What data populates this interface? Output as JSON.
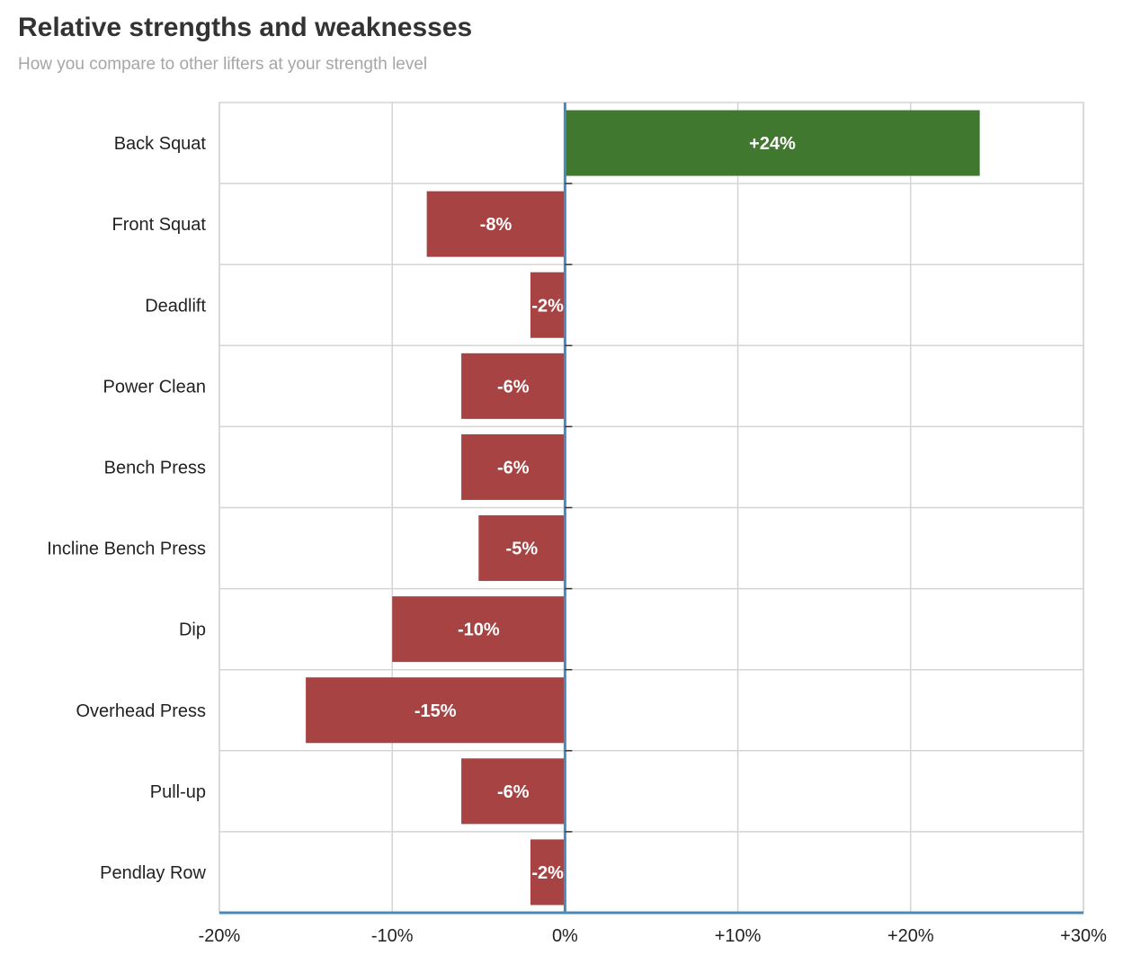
{
  "chart_data": {
    "type": "bar",
    "orientation": "horizontal",
    "title": "Relative strengths and weaknesses",
    "subtitle": "How you compare to other lifters at your strength level",
    "categories": [
      "Back Squat",
      "Front Squat",
      "Deadlift",
      "Power Clean",
      "Bench Press",
      "Incline Bench Press",
      "Dip",
      "Overhead Press",
      "Pull-up",
      "Pendlay Row"
    ],
    "values": [
      24,
      -8,
      -2,
      -6,
      -6,
      -5,
      -10,
      -15,
      -6,
      -2
    ],
    "value_labels": [
      "+24%",
      "-8%",
      "-2%",
      "-6%",
      "-6%",
      "-5%",
      "-10%",
      "-15%",
      "-6%",
      "-2%"
    ],
    "xlim": [
      -20,
      30
    ],
    "xticks": [
      -20,
      -10,
      0,
      10,
      20,
      30
    ],
    "xtick_labels": [
      "-20%",
      "-10%",
      "0%",
      "+10%",
      "+20%",
      "+30%"
    ],
    "xlabel": "",
    "ylabel": "",
    "grid": true,
    "colors": {
      "positive": "#41782f",
      "negative": "#a84343",
      "zero_axis": "#4a89b8",
      "grid": "#d4d4d4"
    }
  }
}
